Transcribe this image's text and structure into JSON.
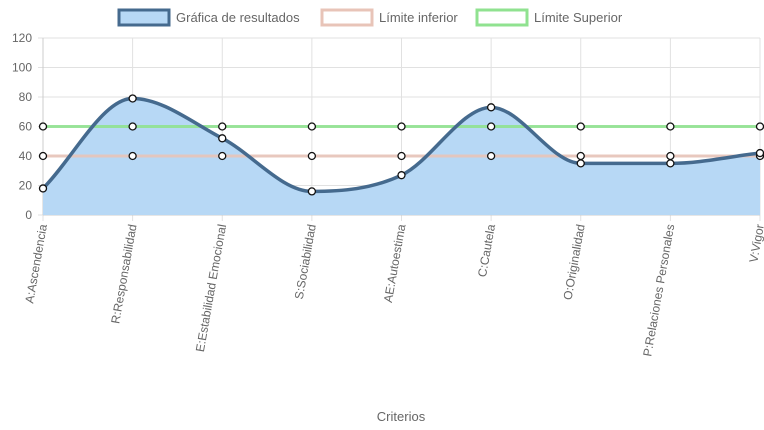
{
  "chart_data": {
    "type": "line",
    "title": "",
    "xlabel": "Criterios",
    "ylabel": "",
    "ylim": [
      0,
      120
    ],
    "yticks": [
      "0",
      "20",
      "40",
      "60",
      "80",
      "100",
      "120"
    ],
    "categories": [
      "A:Ascendencia",
      "R:Responsabilidad",
      "E:Estabilidad Emocional",
      "S:Sociabilidad",
      "AE:Autoestima",
      "C:Cautela",
      "O:Originalidad",
      "P:Relaciones Personales",
      "V:Vigor"
    ],
    "series": [
      {
        "name": "Gráfica de resultados",
        "values": [
          18,
          79,
          52,
          16,
          27,
          73,
          35,
          35,
          42
        ],
        "color": "#456a8e",
        "fill": "#b7d8f5",
        "smooth": true
      },
      {
        "name": "Límite inferior",
        "values": [
          40,
          40,
          40,
          40,
          40,
          40,
          40,
          40,
          40
        ],
        "color": "#e8c4b8"
      },
      {
        "name": "Límite Superior",
        "values": [
          60,
          60,
          60,
          60,
          60,
          60,
          60,
          60,
          60
        ],
        "color": "#90e290"
      }
    ],
    "grid": true,
    "legend_position": "top"
  }
}
